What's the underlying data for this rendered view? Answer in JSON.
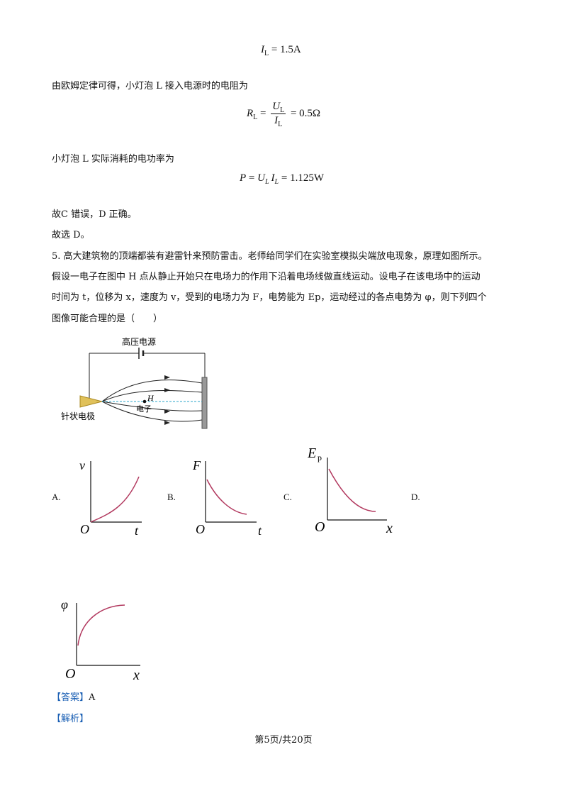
{
  "eq1": {
    "var": "I",
    "sub": "L",
    "rhs": "= 1.5A"
  },
  "line1": "由欧姆定律可得，小灯泡 L 接入电源时的电阻为",
  "eq2": {
    "lhs_var": "R",
    "lhs_sub": "L",
    "eq": "=",
    "num_var": "U",
    "num_sub": "L",
    "den_var": "I",
    "den_sub": "L",
    "rhs": "= 0.5Ω"
  },
  "line2": "小灯泡 L 实际消耗的电功率为",
  "eq3": {
    "p": "P",
    "eq": "=",
    "u": "U",
    "u_sub": "L",
    "i": "I",
    "i_sub": "L",
    "rhs": "= 1.125W"
  },
  "line3": "故C 错误，D 正确。",
  "line4": "故选 D。",
  "q5": {
    "l1": "5. 高大建筑物的顶端都装有避雷针来预防雷击。老师给同学们在实验室模拟尖端放电现象，原理如图所示。",
    "l2": "假设一电子在图中 H 点从静止开始只在电场力的作用下沿着电场线做直线运动。设电子在该电场中的运动",
    "l3": "时间为 t，位移为 x，速度为 v，受到的电场力为 F，电势能为 Ep，运动经过的各点电势为 φ，则下列四个",
    "l4": "图像可能合理的是（　　）"
  },
  "diagram": {
    "power": "高压电源",
    "point": "H",
    "electron": "电子",
    "electrode": "针状电极"
  },
  "options": {
    "a": {
      "label": "A.",
      "y": "v",
      "x": "t",
      "o": "O"
    },
    "b": {
      "label": "B.",
      "y": "F",
      "x": "t",
      "o": "O"
    },
    "c": {
      "label": "C.",
      "y": "E",
      "y_sub": "p",
      "x": "x",
      "o": "O"
    },
    "d": {
      "label": "D.",
      "y": "φ",
      "x": "x",
      "o": "O"
    }
  },
  "answer": {
    "tag": "【答案】",
    "value": "A"
  },
  "analysis": {
    "tag": "【解析】"
  },
  "footer": "第5页/共20页",
  "colors": {
    "curve": "#b2395f",
    "field_line": "#222",
    "dashed": "#2aa6c9",
    "answer_tag": "#1a5fb4"
  }
}
